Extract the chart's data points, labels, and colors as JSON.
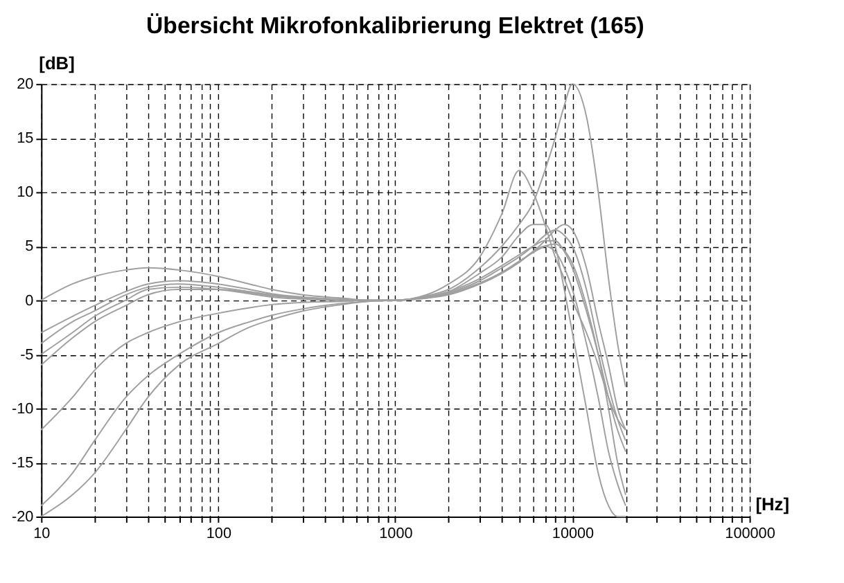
{
  "chart_data": {
    "type": "line",
    "title": "Übersicht Mikrofonkalibrierung Elektret (165)",
    "xlabel": "[Hz]",
    "ylabel": "[dB]",
    "log": "x",
    "grid": true,
    "line_style": "solid",
    "marker": "none",
    "legend": false,
    "xlim": [
      10,
      100000
    ],
    "ylim": [
      -20,
      20
    ],
    "xticks": [
      10,
      {
        "value": 20,
        "label": null
      },
      {
        "value": 30,
        "label": null
      },
      {
        "value": 40,
        "label": null
      },
      {
        "value": 50,
        "label": null
      },
      {
        "value": 60,
        "label": null
      },
      {
        "value": 70,
        "label": null
      },
      {
        "value": 80,
        "label": null
      },
      {
        "value": 90,
        "label": null
      },
      100,
      {
        "value": 200,
        "label": null
      },
      {
        "value": 300,
        "label": null
      },
      {
        "value": 400,
        "label": null
      },
      {
        "value": 500,
        "label": null
      },
      {
        "value": 600,
        "label": null
      },
      {
        "value": 700,
        "label": null
      },
      {
        "value": 800,
        "label": null
      },
      {
        "value": 900,
        "label": null
      },
      1000,
      {
        "value": 2000,
        "label": null
      },
      {
        "value": 3000,
        "label": null
      },
      {
        "value": 4000,
        "label": null
      },
      {
        "value": 5000,
        "label": null
      },
      {
        "value": 6000,
        "label": null
      },
      {
        "value": 7000,
        "label": null
      },
      {
        "value": 8000,
        "label": null
      },
      {
        "value": 9000,
        "label": null
      },
      10000,
      {
        "value": 20000,
        "label": null
      },
      {
        "value": 30000,
        "label": null
      },
      {
        "value": 40000,
        "label": null
      },
      {
        "value": 50000,
        "label": null
      },
      {
        "value": 60000,
        "label": null
      },
      {
        "value": 70000,
        "label": null
      },
      {
        "value": 80000,
        "label": null
      },
      {
        "value": 90000,
        "label": null
      },
      100000
    ],
    "yticks": [
      -20,
      -15,
      -10,
      -5,
      0,
      5,
      10,
      15,
      20
    ],
    "x": [
      10,
      15,
      20,
      30,
      40,
      60,
      100,
      150,
      200,
      300,
      500,
      700,
      1000,
      1500,
      2000,
      3000,
      4000,
      5000,
      6000,
      7000,
      8000,
      9000,
      10000,
      12000,
      14000,
      16000,
      18000,
      20000
    ],
    "series": [
      {
        "color": "#a0a0a0",
        "values": [
          -3,
          -1.5,
          -0.5,
          0.8,
          1.5,
          1.8,
          1.5,
          1,
          0.6,
          0.3,
          0.1,
          0,
          0,
          0.3,
          0.8,
          2,
          3.2,
          4.2,
          5,
          5.5,
          5.5,
          4.5,
          3,
          -1,
          -5,
          -9,
          -12,
          -14
        ]
      },
      {
        "color": "#a0a0a0",
        "values": [
          0,
          1.5,
          2.2,
          2.8,
          3,
          2.8,
          2.2,
          1.5,
          1,
          0.5,
          0.2,
          0,
          0,
          0.2,
          0.6,
          1.5,
          2.5,
          3.5,
          4.5,
          5.5,
          6.5,
          7,
          6.5,
          3,
          -2,
          -6,
          -10,
          -12
        ]
      },
      {
        "color": "#a0a0a0",
        "values": [
          -5,
          -3,
          -1.5,
          0,
          1,
          1.2,
          1,
          0.6,
          0.3,
          0.1,
          0,
          0,
          0,
          0.4,
          1,
          3,
          5,
          7,
          9,
          12,
          15,
          18,
          20,
          17,
          10,
          2,
          -4,
          -8
        ]
      },
      {
        "color": "#a0a0a0",
        "values": [
          -19,
          -16,
          -13,
          -9,
          -7,
          -5,
          -3,
          -2,
          -1.4,
          -0.8,
          -0.3,
          -0.1,
          0,
          0.2,
          0.5,
          1.5,
          2.5,
          3.5,
          4.5,
          5,
          4.5,
          3,
          1,
          -4,
          -9,
          -14,
          -17,
          -19
        ]
      },
      {
        "color": "#a0a0a0",
        "values": [
          -12,
          -9,
          -6.5,
          -4,
          -3,
          -2,
          -1.2,
          -0.7,
          -0.4,
          -0.2,
          -0.1,
          0,
          0,
          0.3,
          0.7,
          1.8,
          3,
          4,
          5,
          6,
          6.5,
          6,
          5,
          1,
          -4,
          -8,
          -11,
          -13
        ]
      },
      {
        "color": "#a0a0a0",
        "values": [
          -6,
          -3.5,
          -2,
          -0.5,
          0.5,
          1,
          1,
          0.7,
          0.4,
          0.2,
          0,
          0,
          0,
          0.3,
          0.8,
          2.5,
          4,
          6,
          7,
          7,
          5,
          1,
          -3,
          -10,
          -16,
          -19,
          -20,
          -20
        ]
      },
      {
        "color": "#a0a0a0",
        "values": [
          -4,
          -2,
          -1,
          0.5,
          1.2,
          1.5,
          1.2,
          0.8,
          0.5,
          0.2,
          0,
          0,
          0,
          0.5,
          1.5,
          4,
          8,
          12,
          10,
          7,
          4,
          2,
          0,
          -3,
          -6,
          -9,
          -11,
          -12
        ]
      },
      {
        "color": "#a0a0a0",
        "values": [
          -20,
          -18,
          -16,
          -12,
          -9,
          -6,
          -4,
          -2.5,
          -1.8,
          -1,
          -0.4,
          -0.1,
          0,
          0.2,
          0.6,
          1.6,
          2.6,
          3.6,
          4.4,
          5,
          5.2,
          4.6,
          3.4,
          -0.5,
          -5,
          -10,
          -15,
          -18
        ]
      }
    ]
  }
}
